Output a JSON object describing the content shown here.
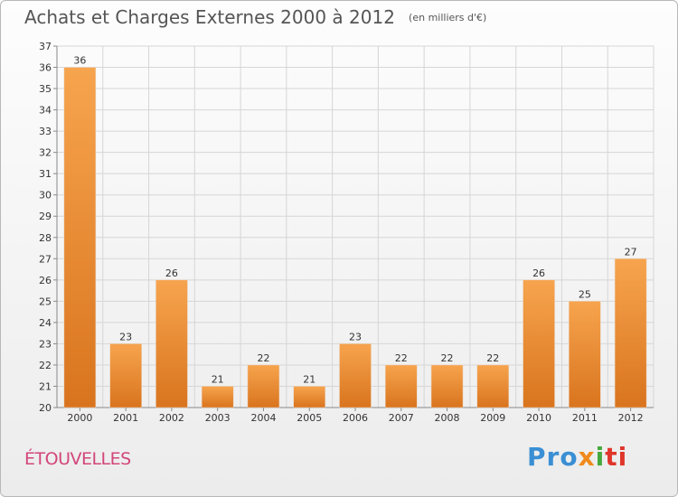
{
  "header": {
    "title": "Achats et Charges Externes 2000 à 2012",
    "unit": "(en milliers d'€)"
  },
  "footer": {
    "commune": "ÉTOUVELLES",
    "logo_parts": [
      "Pro",
      "x",
      "i",
      "ti"
    ]
  },
  "colors": {
    "bar_light": "#f7a44e",
    "bar_dark": "#d9741e",
    "grid": "#d6d6d6",
    "commune": "#d2467a"
  },
  "chart_data": {
    "type": "bar",
    "title": "Achats et Charges Externes 2000 à 2012",
    "subtitle": "(en milliers d'€)",
    "categories": [
      "2000",
      "2001",
      "2002",
      "2003",
      "2004",
      "2005",
      "2006",
      "2007",
      "2008",
      "2009",
      "2010",
      "2011",
      "2012"
    ],
    "values": [
      36,
      23,
      26,
      21,
      22,
      21,
      23,
      22,
      22,
      22,
      26,
      25,
      27
    ],
    "ylim": [
      20,
      37
    ],
    "yticks": [
      20,
      21,
      22,
      23,
      24,
      25,
      26,
      27,
      28,
      29,
      30,
      31,
      32,
      33,
      34,
      35,
      36,
      37
    ],
    "grid": true,
    "xlabel": "",
    "ylabel": ""
  }
}
